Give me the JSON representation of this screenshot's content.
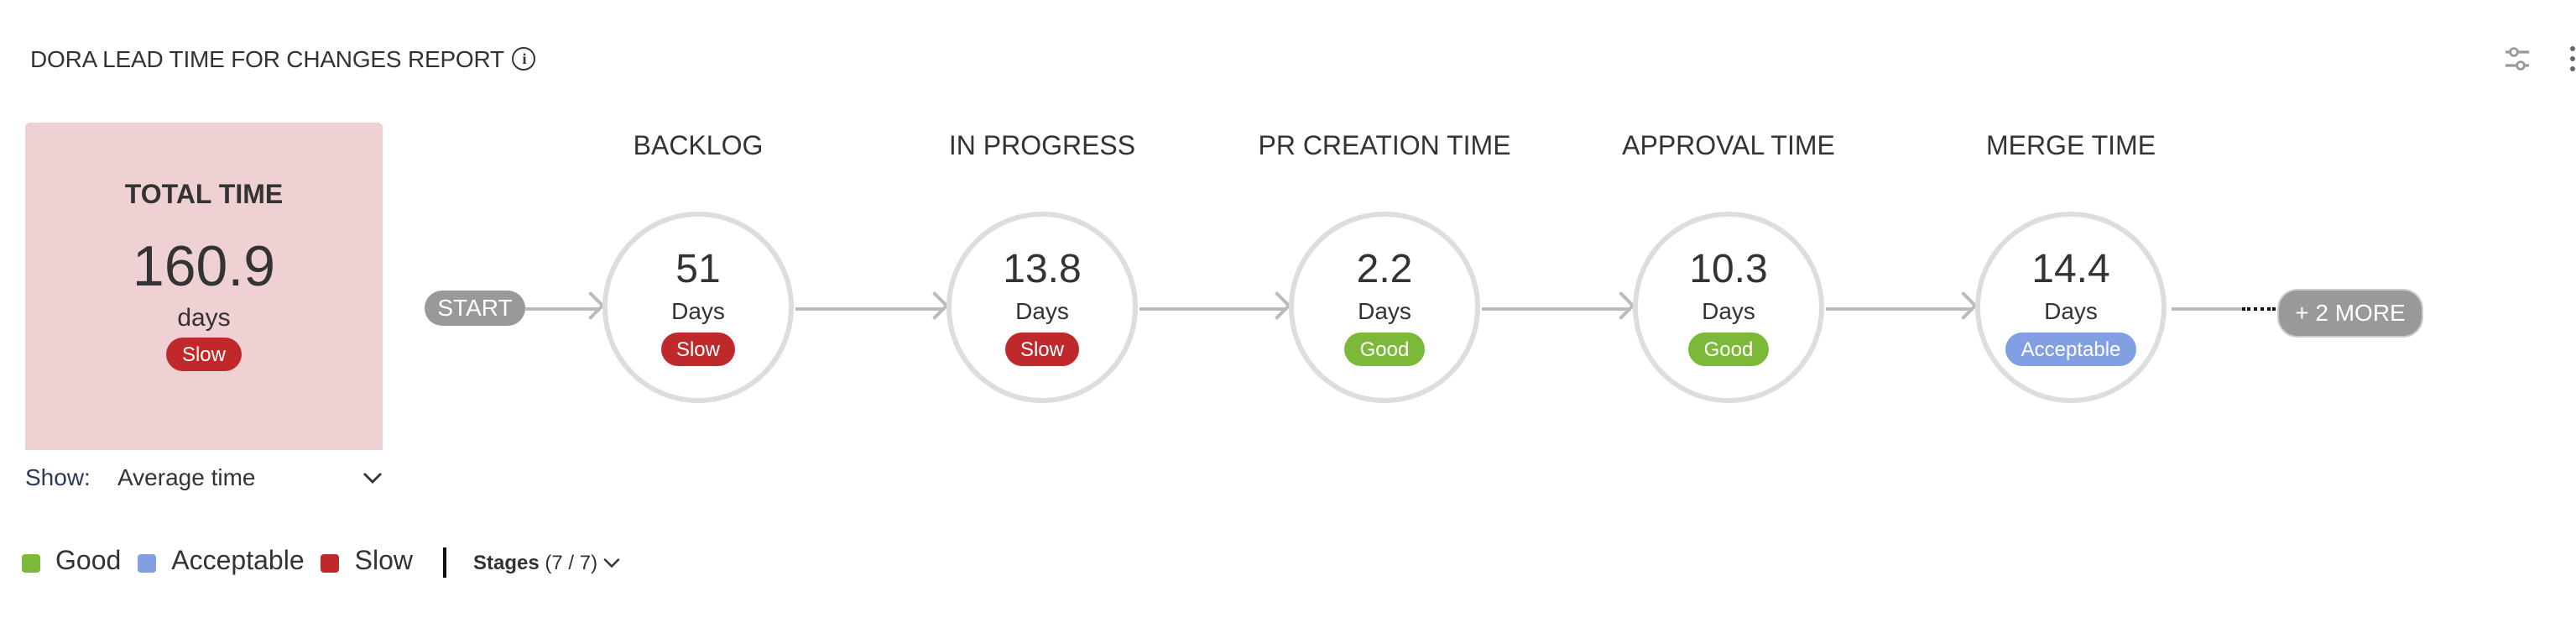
{
  "header": {
    "title": "DORA LEAD TIME FOR CHANGES REPORT",
    "info_icon": "info-icon",
    "filter_icon": "sliders-icon",
    "menu_icon": "kebab-menu-icon"
  },
  "total": {
    "heading": "TOTAL TIME",
    "value": "160.9",
    "unit": "days",
    "status": "Slow"
  },
  "show": {
    "label": "Show:",
    "value": "Average time"
  },
  "flow": {
    "start": "START",
    "more": "+ 2 MORE"
  },
  "stages": [
    {
      "name": "BACKLOG",
      "value": "51",
      "unit": "Days",
      "status": "Slow"
    },
    {
      "name": "IN PROGRESS",
      "value": "13.8",
      "unit": "Days",
      "status": "Slow"
    },
    {
      "name": "PR CREATION TIME",
      "value": "2.2",
      "unit": "Days",
      "status": "Good"
    },
    {
      "name": "APPROVAL TIME",
      "value": "10.3",
      "unit": "Days",
      "status": "Good"
    },
    {
      "name": "MERGE TIME",
      "value": "14.4",
      "unit": "Days",
      "status": "Acceptable"
    }
  ],
  "legend": {
    "items": [
      {
        "label": "Good",
        "color": "#7cb93a"
      },
      {
        "label": "Acceptable",
        "color": "#829fe3"
      },
      {
        "label": "Slow",
        "color": "#c0292b"
      }
    ],
    "stages_label": "Stages",
    "stages_count": "(7 / 7)"
  },
  "colors": {
    "Good": "#7cb93a",
    "Acceptable": "#829fe3",
    "Slow": "#c0292b",
    "total_bg": "#efd1d4"
  }
}
